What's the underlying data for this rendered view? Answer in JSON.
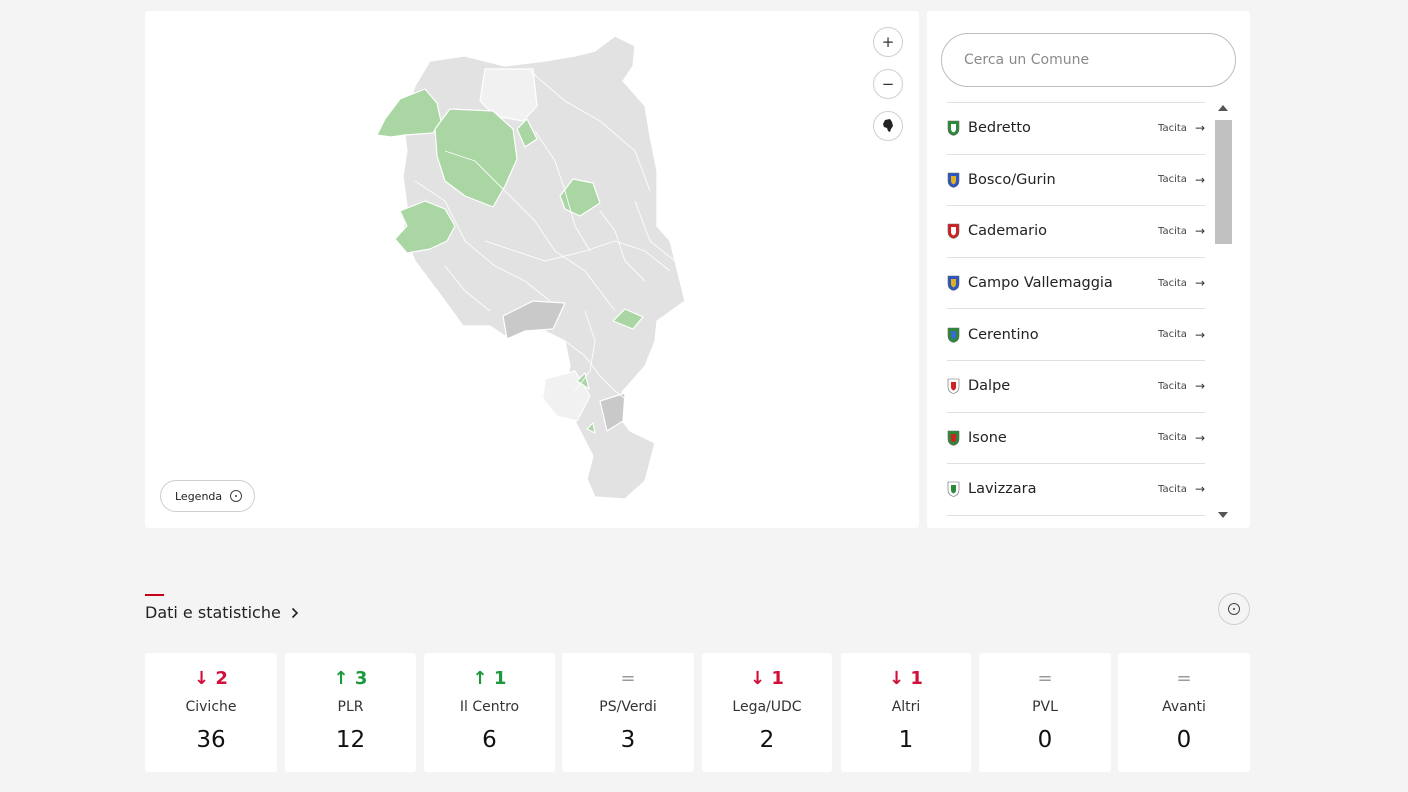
{
  "map": {
    "zoom_in_label": "+",
    "zoom_out_label": "−",
    "legend_label": "Legenda",
    "colors": {
      "tacita": "#a9d6a3",
      "default": "#e2e2e2",
      "dark": "#c9c9c9",
      "light": "#f1f1f1",
      "border": "#ffffff"
    }
  },
  "search": {
    "placeholder": "Cerca un Comune"
  },
  "comuni": [
    {
      "name": "Bedretto",
      "status": "Tacita",
      "crest_colors": [
        "#2a8a3a",
        "#ffffff"
      ]
    },
    {
      "name": "Bosco/Gurin",
      "status": "Tacita",
      "crest_colors": [
        "#2a55c4",
        "#e0b020"
      ]
    },
    {
      "name": "Cademario",
      "status": "Tacita",
      "crest_colors": [
        "#d02020",
        "#ffffff"
      ]
    },
    {
      "name": "Campo Vallemaggia",
      "status": "Tacita",
      "crest_colors": [
        "#2a55c4",
        "#e0b020"
      ]
    },
    {
      "name": "Cerentino",
      "status": "Tacita",
      "crest_colors": [
        "#2a8a3a",
        "#3a6ad0"
      ]
    },
    {
      "name": "Dalpe",
      "status": "Tacita",
      "crest_colors": [
        "#ffffff",
        "#d02020"
      ]
    },
    {
      "name": "Isone",
      "status": "Tacita",
      "crest_colors": [
        "#2a8a3a",
        "#d02020"
      ]
    },
    {
      "name": "Lavizzara",
      "status": "Tacita",
      "crest_colors": [
        "#ffffff",
        "#2a8a3a"
      ]
    }
  ],
  "stats": {
    "title": "Dati e statistiche",
    "parties": [
      {
        "name": "Civiche",
        "delta": "2",
        "trend": "down",
        "seats": "36"
      },
      {
        "name": "PLR",
        "delta": "3",
        "trend": "up",
        "seats": "12"
      },
      {
        "name": "Il Centro",
        "delta": "1",
        "trend": "up",
        "seats": "6"
      },
      {
        "name": "PS/Verdi",
        "delta": "",
        "trend": "eq",
        "seats": "3"
      },
      {
        "name": "Lega/UDC",
        "delta": "1",
        "trend": "down",
        "seats": "2"
      },
      {
        "name": "Altri",
        "delta": "1",
        "trend": "down",
        "seats": "1"
      },
      {
        "name": "PVL",
        "delta": "",
        "trend": "eq",
        "seats": "0"
      },
      {
        "name": "Avanti",
        "delta": "",
        "trend": "eq",
        "seats": "0"
      }
    ]
  }
}
